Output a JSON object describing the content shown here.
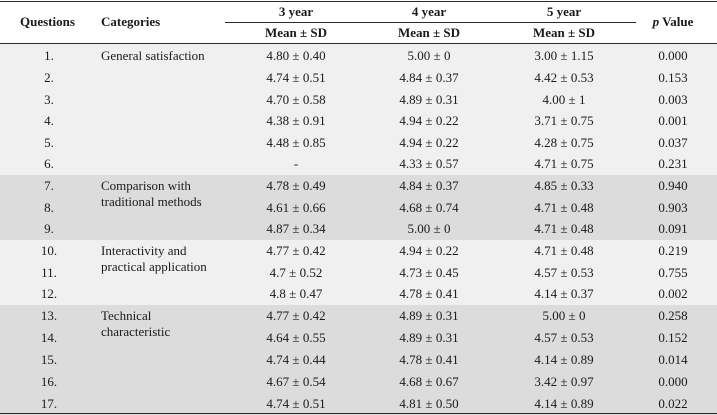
{
  "headers": {
    "questions": "Questions",
    "categories": "Categories",
    "year3": "3 year",
    "year4": "4 year",
    "year5": "5 year",
    "mean_sd": "Mean ± SD",
    "p_letter": "p",
    "p_rest": " Value"
  },
  "rows": [
    {
      "q": "1.",
      "y3": "4.80 ± 0.40",
      "y4": "5.00 ± 0",
      "y5": "3.00 ± 1.15",
      "p": "0.000"
    },
    {
      "q": "2.",
      "y3": "4.74 ± 0.51",
      "y4": "4.84 ± 0.37",
      "y5": "4.42 ± 0.53",
      "p": "0.153"
    },
    {
      "q": "3.",
      "y3": "4.70 ± 0.58",
      "y4": "4.89 ± 0.31",
      "y5": "4.00 ± 1",
      "p": "0.003"
    },
    {
      "q": "4.",
      "y3": "4.38 ± 0.91",
      "y4": "4.94 ± 0.22",
      "y5": "3.71 ± 0.75",
      "p": "0.001"
    },
    {
      "q": "5.",
      "y3": "4.48 ± 0.85",
      "y4": "4.94 ± 0.22",
      "y5": "4.28 ± 0.75",
      "p": "0.037"
    },
    {
      "q": "6.",
      "y3": "-",
      "y4": "4.33 ± 0.57",
      "y5": "4.71 ± 0.75",
      "p": "0.231"
    },
    {
      "q": "7.",
      "y3": "4.78 ± 0.49",
      "y4": "4.84 ± 0.37",
      "y5": "4.85 ± 0.33",
      "p": "0.940"
    },
    {
      "q": "8.",
      "y3": "4.61 ± 0.66",
      "y4": "4.68 ± 0.74",
      "y5": "4.71 ± 0.48",
      "p": "0.903"
    },
    {
      "q": "9.",
      "y3": "4.87 ± 0.34",
      "y4": "5.00 ± 0",
      "y5": "4.71 ± 0.48",
      "p": "0.091"
    },
    {
      "q": "10.",
      "y3": "4.77 ± 0.42",
      "y4": "4.94 ± 0.22",
      "y5": "4.71 ± 0.48",
      "p": "0.219"
    },
    {
      "q": "11.",
      "y3": "4.7 ± 0.52",
      "y4": "4.73 ± 0.45",
      "y5": "4.57 ± 0.53",
      "p": "0.755"
    },
    {
      "q": "12.",
      "y3": "4.8 ± 0.47",
      "y4": "4.78 ± 0.41",
      "y5": "4.14 ± 0.37",
      "p": "0.002"
    },
    {
      "q": "13.",
      "y3": "4.77 ± 0.42",
      "y4": "4.89 ± 0.31",
      "y5": "5.00 ± 0",
      "p": "0.258"
    },
    {
      "q": "14.",
      "y3": "4.64 ± 0.55",
      "y4": "4.89 ± 0.31",
      "y5": "4.57 ± 0.53",
      "p": "0.152"
    },
    {
      "q": "15.",
      "y3": "4.74 ± 0.44",
      "y4": "4.78 ± 0.41",
      "y5": "4.14 ± 0.89",
      "p": "0.014"
    },
    {
      "q": "16.",
      "y3": "4.67 ± 0.54",
      "y4": "4.68 ± 0.67",
      "y5": "3.42 ± 0.97",
      "p": "0.000"
    },
    {
      "q": "17.",
      "y3": "4.74 ± 0.51",
      "y4": "4.81 ± 0.50",
      "y5": "4.14 ± 0.89",
      "p": "0.022"
    }
  ],
  "categories": [
    {
      "lines": [
        "General satisfaction"
      ]
    },
    {
      "lines": [
        "Comparison with",
        "traditional methods"
      ]
    },
    {
      "lines": [
        "Interactivity and",
        "practical application"
      ]
    },
    {
      "lines": [
        "Technical",
        "characteristic"
      ]
    }
  ],
  "colors": {
    "band_light": "#f0f0f0",
    "band_dark": "#dcdcdc",
    "rule": "#2a2a2a"
  }
}
